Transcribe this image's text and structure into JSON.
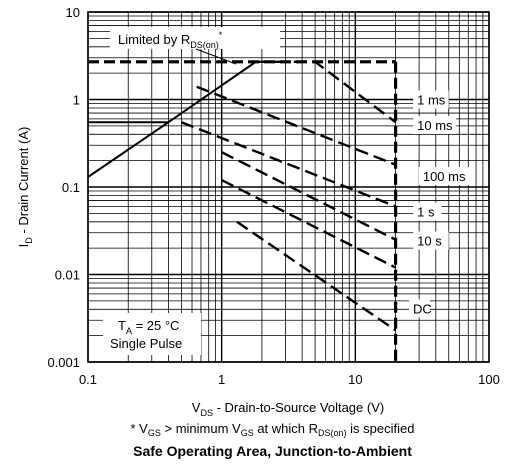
{
  "chart_data": {
    "type": "line",
    "title": "Safe Operating Area, Junction-to-Ambient",
    "footnote": {
      "prefix": "* V",
      "sub1": "GS",
      "middle": " >  minimum V",
      "sub2": "GS",
      "middle2": " at which R",
      "sub3": "DS(on)",
      "suffix": " is specified"
    },
    "xlabel": {
      "main": "V",
      "sub": "DS",
      "rest": " - Drain-to-Source Voltage (V)"
    },
    "ylabel": {
      "main": "I",
      "sub": "D",
      "rest": " - Drain Current (A)"
    },
    "xscale": "log",
    "yscale": "log",
    "xlim": [
      0.1,
      100
    ],
    "ylim": [
      0.001,
      10
    ],
    "grid": true,
    "x_ticks": [
      "0.1",
      "1",
      "10",
      "100"
    ],
    "y_ticks": [
      "10",
      "1",
      "0.1",
      "0.01",
      "0.001"
    ],
    "annotations": {
      "rds_limit": {
        "main": "Limited by R",
        "sub": "DS(on)",
        "star": "*"
      },
      "ta": {
        "main": "T",
        "sub": "A",
        "rest": " = 25 °C"
      },
      "pulse": "Single Pulse"
    },
    "series": [
      {
        "name": "Limited by RDS(on)*",
        "style": "solid",
        "points": [
          [
            0.1,
            0.13
          ],
          [
            0.4,
            0.55
          ],
          [
            1.8,
            2.7
          ]
        ]
      },
      {
        "name": "Current limit",
        "style": "solid",
        "points": [
          [
            0.1,
            0.55
          ],
          [
            0.4,
            0.55
          ]
        ]
      },
      {
        "name": "1 ms",
        "style": "dashed",
        "points": [
          [
            1.8,
            2.7
          ],
          [
            5.0,
            2.7
          ],
          [
            20,
            0.55
          ]
        ]
      },
      {
        "name": "10 ms",
        "style": "dashed",
        "points": [
          [
            0.65,
            1.4
          ],
          [
            20,
            0.18
          ]
        ]
      },
      {
        "name": "100 ms",
        "style": "dashed",
        "points": [
          [
            0.5,
            0.55
          ],
          [
            20,
            0.06
          ]
        ]
      },
      {
        "name": "1 s",
        "style": "dashed",
        "points": [
          [
            1.0,
            0.25
          ],
          [
            20,
            0.025
          ]
        ]
      },
      {
        "name": "10 s",
        "style": "dashed",
        "points": [
          [
            1.0,
            0.12
          ],
          [
            20,
            0.012
          ]
        ]
      },
      {
        "name": "DC",
        "style": "dashed",
        "points": [
          [
            1.3,
            0.04
          ],
          [
            20,
            0.0023
          ]
        ]
      },
      {
        "name": "Max current",
        "style": "dashed-bold",
        "points": [
          [
            0.1,
            2.7
          ],
          [
            20,
            2.7
          ]
        ]
      },
      {
        "name": "Max voltage",
        "style": "dashed-bold",
        "points": [
          [
            20,
            2.7
          ],
          [
            20,
            0.001
          ]
        ]
      }
    ],
    "curve_labels": [
      {
        "text": "1 ms",
        "x": 29,
        "y": 0.9
      },
      {
        "text": "10 ms",
        "x": 29,
        "y": 0.46
      },
      {
        "text": "100 ms",
        "x": 32,
        "y": 0.12
      },
      {
        "text": "1 s",
        "x": 29,
        "y": 0.047
      },
      {
        "text": "10 s",
        "x": 29,
        "y": 0.022
      },
      {
        "text": "DC",
        "x": 27,
        "y": 0.0037
      }
    ]
  }
}
